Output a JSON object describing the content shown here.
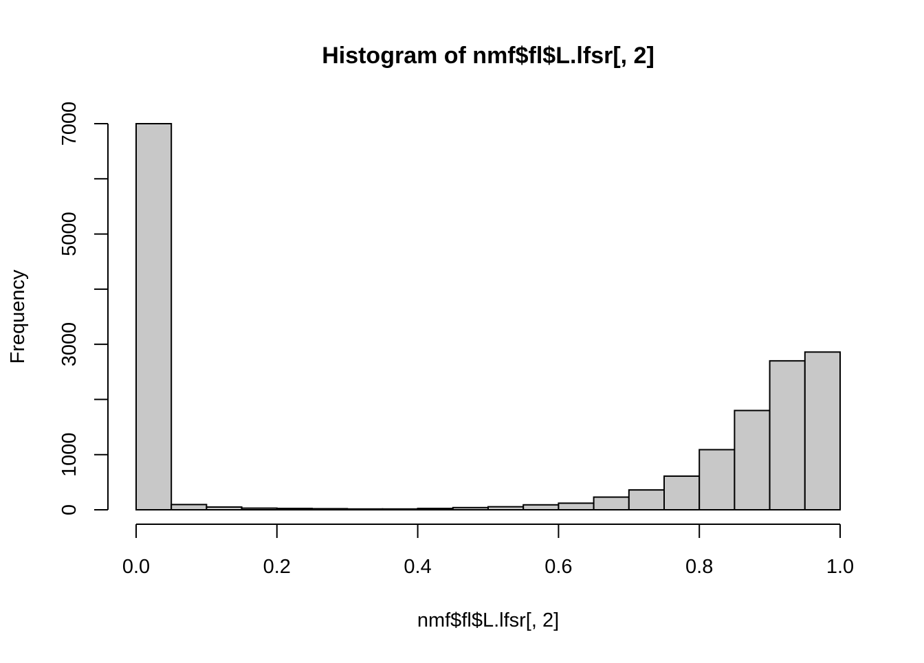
{
  "chart_data": {
    "type": "bar",
    "title": "Histogram of nmf$fl$L.lfsr[, 2]",
    "xlabel": "nmf$fl$L.lfsr[, 2]",
    "ylabel": "Frequency",
    "bins": [
      [
        0.0,
        0.05
      ],
      [
        0.05,
        0.1
      ],
      [
        0.1,
        0.15
      ],
      [
        0.15,
        0.2
      ],
      [
        0.2,
        0.25
      ],
      [
        0.25,
        0.3
      ],
      [
        0.3,
        0.35
      ],
      [
        0.35,
        0.4
      ],
      [
        0.4,
        0.45
      ],
      [
        0.45,
        0.5
      ],
      [
        0.5,
        0.55
      ],
      [
        0.55,
        0.6
      ],
      [
        0.6,
        0.65
      ],
      [
        0.65,
        0.7
      ],
      [
        0.7,
        0.75
      ],
      [
        0.75,
        0.8
      ],
      [
        0.8,
        0.85
      ],
      [
        0.85,
        0.9
      ],
      [
        0.9,
        0.95
      ],
      [
        0.95,
        1.0
      ]
    ],
    "values": [
      7000,
      95,
      50,
      30,
      25,
      20,
      15,
      15,
      25,
      40,
      55,
      90,
      120,
      230,
      360,
      610,
      1090,
      1800,
      2700,
      2860
    ],
    "xlim": [
      0,
      1
    ],
    "ylim": [
      0,
      7000
    ],
    "x_ticks": [
      0.0,
      0.2,
      0.4,
      0.6,
      0.8,
      1.0
    ],
    "x_tick_labels": [
      "0.0",
      "0.2",
      "0.4",
      "0.6",
      "0.8",
      "1.0"
    ],
    "y_ticks": [
      0,
      1000,
      2000,
      3000,
      4000,
      5000,
      6000,
      7000
    ],
    "y_tick_labels": [
      "0",
      "1000",
      "",
      "3000",
      "",
      "5000",
      "",
      "7000"
    ],
    "bar_fill": "#c8c8c8",
    "bar_stroke": "#000000",
    "grid": false,
    "legend": "none"
  }
}
